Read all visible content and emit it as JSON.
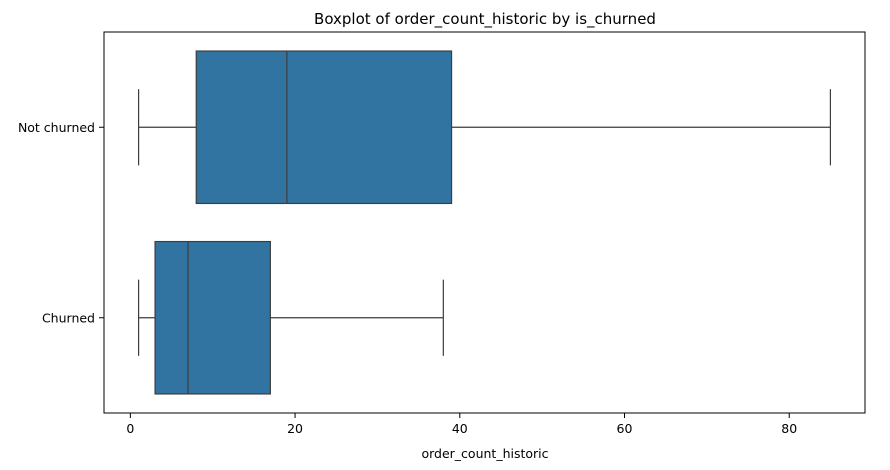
{
  "chart_data": {
    "type": "boxplot",
    "title": "Boxplot of order_count_historic by is_churned",
    "xlabel": "order_count_historic",
    "ylabel": "",
    "orientation": "horizontal",
    "xlim": [
      -3.2,
      89.2
    ],
    "xticks": [
      0,
      20,
      40,
      60,
      80
    ],
    "xtick_labels": [
      "0",
      "20",
      "40",
      "60",
      "80"
    ],
    "grid": false,
    "legend": "none",
    "box_color": "#3274a1",
    "line_color": "#3d3d3d",
    "categories": [
      "Not churned",
      "Churned"
    ],
    "boxes": [
      {
        "category": "Not churned",
        "whisker_low": 1,
        "q1": 8,
        "median": 19,
        "q3": 39,
        "whisker_high": 85
      },
      {
        "category": "Churned",
        "whisker_low": 1,
        "q1": 3,
        "median": 7,
        "q3": 17,
        "whisker_high": 38
      }
    ]
  }
}
